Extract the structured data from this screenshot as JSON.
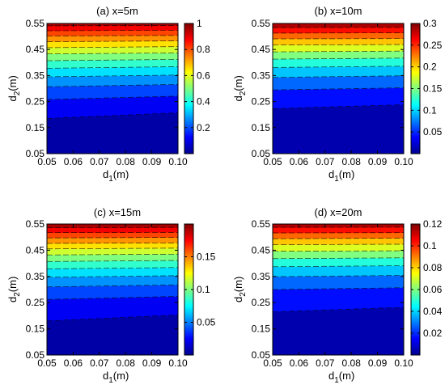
{
  "chart_data": [
    {
      "type": "contour",
      "title": "(a) x=5m",
      "xlabel": "d",
      "xlabel_sub": "1",
      "xlabel_unit": "(m)",
      "ylabel": "d",
      "ylabel_sub": "2",
      "ylabel_unit": "(m)",
      "xlim": [
        0.05,
        0.1
      ],
      "ylim": [
        0.05,
        0.55
      ],
      "x_ticks": [
        "0.05",
        "0.06",
        "0.07",
        "0.08",
        "0.09",
        "0.10"
      ],
      "y_ticks": [
        "0.05",
        "0.15",
        "0.25",
        "0.35",
        "0.45",
        "0.55"
      ],
      "colorbar_range": [
        0.0,
        1.0
      ],
      "colorbar_ticks": [
        "0.2",
        "0.4",
        "0.6",
        "0.8",
        "1"
      ],
      "colorbar_tick_values": [
        0.2,
        0.4,
        0.6,
        0.8,
        1.0
      ],
      "contour_levels": [
        {
          "y_left": 0.185,
          "y_right": 0.207
        },
        {
          "y_left": 0.258,
          "y_right": 0.271
        },
        {
          "y_left": 0.307,
          "y_right": 0.316
        },
        {
          "y_left": 0.345,
          "y_right": 0.352
        },
        {
          "y_left": 0.378,
          "y_right": 0.384
        },
        {
          "y_left": 0.407,
          "y_right": 0.412
        },
        {
          "y_left": 0.433,
          "y_right": 0.437
        },
        {
          "y_left": 0.457,
          "y_right": 0.461
        },
        {
          "y_left": 0.48,
          "y_right": 0.483
        },
        {
          "y_left": 0.502,
          "y_right": 0.504
        },
        {
          "y_left": 0.522,
          "y_right": 0.524
        },
        {
          "y_left": 0.541,
          "y_right": 0.542
        }
      ]
    },
    {
      "type": "contour",
      "title": "(b) x=10m",
      "xlabel": "d",
      "xlabel_sub": "1",
      "xlabel_unit": "(m)",
      "ylabel": "d",
      "ylabel_sub": "2",
      "ylabel_unit": "(m)",
      "xlim": [
        0.05,
        0.1
      ],
      "ylim": [
        0.05,
        0.55
      ],
      "x_ticks": [
        "0.05",
        "0.06",
        "0.07",
        "0.08",
        "0.09",
        "0.10"
      ],
      "y_ticks": [
        "0.05",
        "0.15",
        "0.25",
        "0.35",
        "0.45",
        "0.55"
      ],
      "colorbar_range": [
        0.0,
        0.3
      ],
      "colorbar_ticks": [
        "0.05",
        "0.1",
        "0.15",
        "0.2",
        "0.25",
        "0.3"
      ],
      "colorbar_tick_values": [
        0.05,
        0.1,
        0.15,
        0.2,
        0.25,
        0.3
      ],
      "contour_levels": [
        {
          "y_left": 0.223,
          "y_right": 0.238
        },
        {
          "y_left": 0.295,
          "y_right": 0.303
        },
        {
          "y_left": 0.343,
          "y_right": 0.349
        },
        {
          "y_left": 0.381,
          "y_right": 0.386
        },
        {
          "y_left": 0.413,
          "y_right": 0.417
        },
        {
          "y_left": 0.441,
          "y_right": 0.444
        },
        {
          "y_left": 0.467,
          "y_right": 0.469
        },
        {
          "y_left": 0.491,
          "y_right": 0.492
        },
        {
          "y_left": 0.513,
          "y_right": 0.514
        },
        {
          "y_left": 0.534,
          "y_right": 0.535
        }
      ]
    },
    {
      "type": "contour",
      "title": "(c) x=15m",
      "xlabel": "d",
      "xlabel_sub": "1",
      "xlabel_unit": "(m)",
      "ylabel": "d",
      "ylabel_sub": "2",
      "ylabel_unit": "(m)",
      "xlim": [
        0.05,
        0.1
      ],
      "ylim": [
        0.05,
        0.55
      ],
      "x_ticks": [
        "0.05",
        "0.06",
        "0.07",
        "0.08",
        "0.09",
        "0.10"
      ],
      "y_ticks": [
        "0.05",
        "0.15",
        "0.25",
        "0.35",
        "0.45",
        "0.55"
      ],
      "colorbar_range": [
        0.0,
        0.2
      ],
      "colorbar_ticks": [
        "0.05",
        "0.1",
        "0.15"
      ],
      "colorbar_tick_values": [
        0.05,
        0.1,
        0.15
      ],
      "contour_levels": [
        {
          "y_left": 0.18,
          "y_right": 0.203
        },
        {
          "y_left": 0.262,
          "y_right": 0.274
        },
        {
          "y_left": 0.31,
          "y_right": 0.318
        },
        {
          "y_left": 0.347,
          "y_right": 0.353
        },
        {
          "y_left": 0.379,
          "y_right": 0.384
        },
        {
          "y_left": 0.407,
          "y_right": 0.411
        },
        {
          "y_left": 0.432,
          "y_right": 0.435
        },
        {
          "y_left": 0.455,
          "y_right": 0.458
        },
        {
          "y_left": 0.476,
          "y_right": 0.478
        },
        {
          "y_left": 0.497,
          "y_right": 0.499
        },
        {
          "y_left": 0.517,
          "y_right": 0.518
        },
        {
          "y_left": 0.536,
          "y_right": 0.537
        }
      ]
    },
    {
      "type": "contour",
      "title": "(d) x=20m",
      "xlabel": "d",
      "xlabel_sub": "1",
      "xlabel_unit": "(m)",
      "ylabel": "d",
      "ylabel_sub": "2",
      "ylabel_unit": "(m)",
      "xlim": [
        0.05,
        0.1
      ],
      "ylim": [
        0.05,
        0.55
      ],
      "x_ticks": [
        "0.05",
        "0.06",
        "0.07",
        "0.08",
        "0.09",
        "0.10"
      ],
      "y_ticks": [
        "0.05",
        "0.15",
        "0.25",
        "0.35",
        "0.45",
        "0.55"
      ],
      "colorbar_range": [
        0.0,
        0.12
      ],
      "colorbar_ticks": [
        "0.02",
        "0.04",
        "0.06",
        "0.08",
        "0.1",
        "0.12"
      ],
      "colorbar_tick_values": [
        0.02,
        0.04,
        0.06,
        0.08,
        0.1,
        0.12
      ],
      "contour_levels": [
        {
          "y_left": 0.215,
          "y_right": 0.232
        },
        {
          "y_left": 0.3,
          "y_right": 0.307
        },
        {
          "y_left": 0.349,
          "y_right": 0.354
        },
        {
          "y_left": 0.387,
          "y_right": 0.391
        },
        {
          "y_left": 0.418,
          "y_right": 0.421
        },
        {
          "y_left": 0.446,
          "y_right": 0.448
        },
        {
          "y_left": 0.471,
          "y_right": 0.473
        },
        {
          "y_left": 0.494,
          "y_right": 0.496
        },
        {
          "y_left": 0.516,
          "y_right": 0.517
        },
        {
          "y_left": 0.537,
          "y_right": 0.538
        }
      ]
    }
  ]
}
